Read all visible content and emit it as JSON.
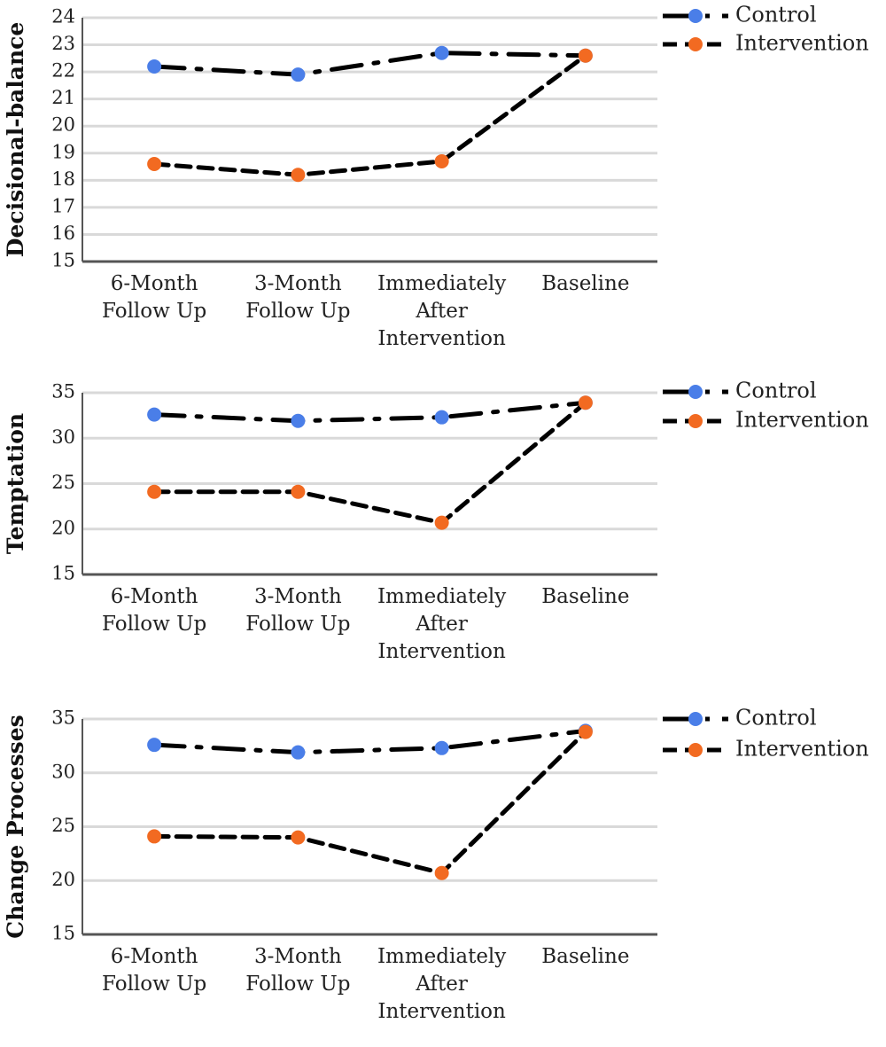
{
  "chart_data": [
    {
      "type": "line",
      "ylabel": "Decisional-balance",
      "categories": [
        "6-Month Follow Up",
        "3-Month Follow Up",
        "Immediately After Intervention",
        "Baseline"
      ],
      "ylim": [
        15,
        24
      ],
      "yticks": [
        15,
        16,
        17,
        18,
        19,
        20,
        21,
        22,
        23,
        24
      ],
      "grid": true,
      "legend": "right",
      "series": [
        {
          "name": "Control",
          "color": "#4a7ee8",
          "line_color": "#000000",
          "dash": "dash-dot",
          "values": [
            22.2,
            21.9,
            22.7,
            22.6
          ]
        },
        {
          "name": "Intervention",
          "color": "#f26a21",
          "line_color": "#000000",
          "dash": "dashed",
          "values": [
            18.6,
            18.2,
            18.7,
            22.6
          ]
        }
      ]
    },
    {
      "type": "line",
      "ylabel": "Temptation",
      "categories": [
        "6-Month Follow Up",
        "3-Month Follow Up",
        "Immediately After Intervention",
        "Baseline"
      ],
      "ylim": [
        15,
        35
      ],
      "yticks": [
        15,
        20,
        25,
        30,
        35
      ],
      "grid": true,
      "legend": "right",
      "series": [
        {
          "name": "Control",
          "color": "#4a7ee8",
          "line_color": "#000000",
          "dash": "dash-dot",
          "values": [
            32.6,
            31.9,
            32.3,
            33.9
          ]
        },
        {
          "name": "Intervention",
          "color": "#f26a21",
          "line_color": "#000000",
          "dash": "dashed",
          "values": [
            24.1,
            24.1,
            20.7,
            33.9
          ]
        }
      ]
    },
    {
      "type": "line",
      "ylabel": "Change Processes",
      "categories": [
        "6-Month Follow Up",
        "3-Month Follow Up",
        "Immediately After Intervention",
        "Baseline"
      ],
      "ylim": [
        15,
        35
      ],
      "yticks": [
        15,
        20,
        25,
        30,
        35
      ],
      "grid": true,
      "legend": "right",
      "series": [
        {
          "name": "Control",
          "color": "#4a7ee8",
          "line_color": "#000000",
          "dash": "dash-dot",
          "values": [
            32.6,
            31.9,
            32.3,
            33.9
          ]
        },
        {
          "name": "Intervention",
          "color": "#f26a21",
          "line_color": "#000000",
          "dash": "dashed",
          "values": [
            24.1,
            24.0,
            20.7,
            33.8
          ]
        }
      ]
    }
  ]
}
